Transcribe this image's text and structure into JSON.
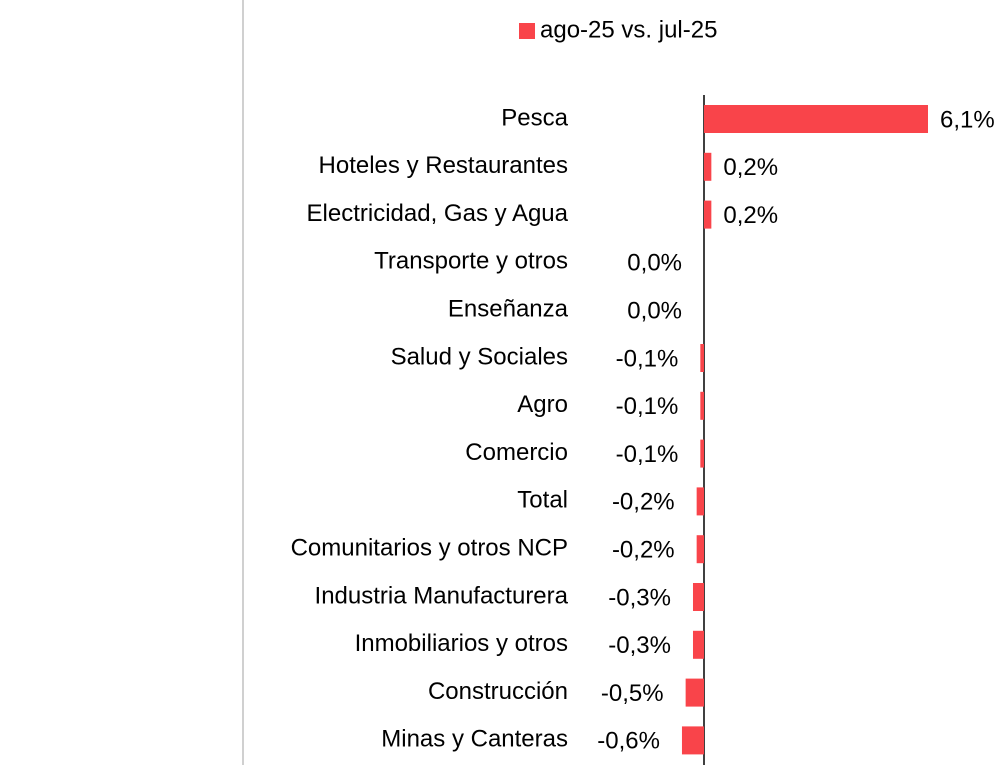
{
  "chart_data": {
    "type": "hbar",
    "categories": [
      "Pesca",
      "Hoteles y Restaurantes",
      "Electricidad, Gas y Agua",
      "Transporte y otros",
      "Enseñanza",
      "Salud y Sociales",
      "Agro",
      "Comercio",
      "Total",
      "Comunitarios y otros NCP",
      "Industria Manufacturera",
      "Inmobiliarios y otros",
      "Construcción",
      "Minas y Canteras"
    ],
    "series": [
      {
        "name": "ago-25 vs. jul-25",
        "color": "#f9444a",
        "values": [
          6.1,
          0.2,
          0.2,
          0.0,
          0.0,
          -0.1,
          -0.1,
          -0.1,
          -0.2,
          -0.2,
          -0.3,
          -0.3,
          -0.5,
          -0.6
        ],
        "value_labels": [
          "6,1%",
          "0,2%",
          "0,2%",
          "0,0%",
          "0,0%",
          "-0,1%",
          "-0,1%",
          "-0,1%",
          "-0,2%",
          "-0,2%",
          "-0,3%",
          "-0,3%",
          "-0,5%",
          "-0,6%"
        ]
      }
    ]
  }
}
